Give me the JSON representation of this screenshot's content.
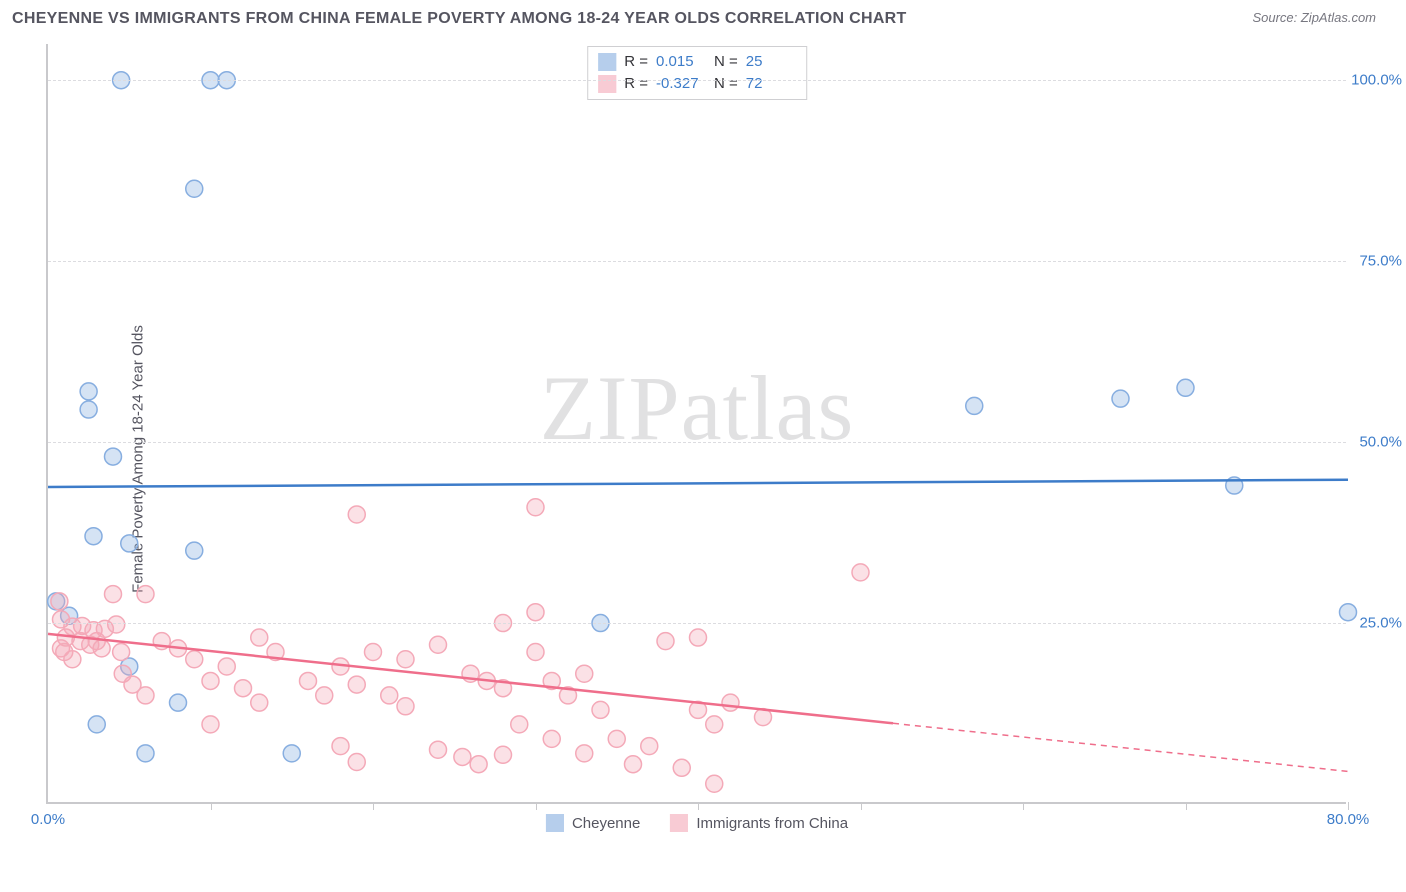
{
  "title": "CHEYENNE VS IMMIGRANTS FROM CHINA FEMALE POVERTY AMONG 18-24 YEAR OLDS CORRELATION CHART",
  "source": "Source: ZipAtlas.com",
  "watermark": "ZIPatlas",
  "y_axis_label": "Female Poverty Among 18-24 Year Olds",
  "chart": {
    "type": "scatter",
    "background_color": "#ffffff",
    "grid_color": "#dcdce0",
    "axis_color": "#c9c9cc",
    "tick_label_color": "#3d7cc9",
    "label_fontsize": 15,
    "title_fontsize": 16,
    "xlim": [
      0,
      80
    ],
    "ylim": [
      0,
      105
    ],
    "x_tick_step": 10,
    "x_tick_labels": {
      "0": "0.0%",
      "80": "80.0%"
    },
    "y_ticks": [
      25,
      50,
      75,
      100
    ],
    "y_tick_labels": {
      "25": "25.0%",
      "50": "50.0%",
      "75": "75.0%",
      "100": "100.0%"
    },
    "marker_radius": 8.5,
    "marker_stroke_width": 1.5,
    "marker_fill_opacity": 0.35,
    "line_width": 2.5,
    "series": [
      {
        "key": "cheyenne",
        "label": "Cheyenne",
        "color": "#87aee0",
        "line_color": "#3d7cc9",
        "R": "0.015",
        "N": "25",
        "regression": {
          "x1": 0,
          "y1": 43.8,
          "x2": 80,
          "y2": 44.8,
          "solid_until_x": 80
        },
        "points": [
          [
            4.5,
            100
          ],
          [
            10,
            100
          ],
          [
            11,
            100
          ],
          [
            9,
            85
          ],
          [
            2.5,
            57
          ],
          [
            2.5,
            54.5
          ],
          [
            57,
            55
          ],
          [
            66,
            56
          ],
          [
            70,
            57.5
          ],
          [
            4,
            48
          ],
          [
            73,
            44
          ],
          [
            80,
            26.5
          ],
          [
            2.8,
            37
          ],
          [
            5,
            36
          ],
          [
            9,
            35
          ],
          [
            0.5,
            28
          ],
          [
            1.3,
            26
          ],
          [
            34,
            25
          ],
          [
            5,
            19
          ],
          [
            8,
            14
          ],
          [
            3,
            11
          ],
          [
            6,
            7
          ],
          [
            15,
            7
          ]
        ]
      },
      {
        "key": "china",
        "label": "Immigrants from China",
        "color": "#f4a9b8",
        "line_color": "#ef6e8b",
        "R": "-0.327",
        "N": "72",
        "regression": {
          "x1": 0,
          "y1": 23.5,
          "x2": 80,
          "y2": 4.5,
          "solid_until_x": 52
        },
        "points": [
          [
            19,
            40
          ],
          [
            30,
            41
          ],
          [
            50,
            32
          ],
          [
            0.7,
            28
          ],
          [
            4,
            29
          ],
          [
            6,
            29
          ],
          [
            0.8,
            25.5
          ],
          [
            1.5,
            24.5
          ],
          [
            2.1,
            24.6
          ],
          [
            2.8,
            24
          ],
          [
            3.5,
            24.2
          ],
          [
            4.2,
            24.8
          ],
          [
            3,
            22.5
          ],
          [
            1.1,
            23
          ],
          [
            2,
            22.5
          ],
          [
            2.6,
            22
          ],
          [
            3.3,
            21.5
          ],
          [
            4.5,
            21
          ],
          [
            1,
            21
          ],
          [
            1.5,
            20
          ],
          [
            0.8,
            21.5
          ],
          [
            38,
            22.5
          ],
          [
            40,
            23
          ],
          [
            7,
            22.5
          ],
          [
            8,
            21.5
          ],
          [
            9,
            20
          ],
          [
            11,
            19
          ],
          [
            13,
            23
          ],
          [
            14,
            21
          ],
          [
            10,
            17
          ],
          [
            12,
            16
          ],
          [
            13,
            14
          ],
          [
            4.6,
            18
          ],
          [
            5.2,
            16.5
          ],
          [
            6,
            15
          ],
          [
            16,
            17
          ],
          [
            17,
            15
          ],
          [
            18,
            19
          ],
          [
            19,
            16.5
          ],
          [
            21,
            15
          ],
          [
            22,
            13.5
          ],
          [
            20,
            21
          ],
          [
            22,
            20
          ],
          [
            24,
            22
          ],
          [
            26,
            18
          ],
          [
            24,
            7.5
          ],
          [
            25.5,
            6.5
          ],
          [
            26.5,
            5.5
          ],
          [
            28,
            6.8
          ],
          [
            27,
            17
          ],
          [
            28,
            16
          ],
          [
            29,
            11
          ],
          [
            30,
            21
          ],
          [
            31,
            17
          ],
          [
            33,
            18
          ],
          [
            10,
            11
          ],
          [
            18,
            8
          ],
          [
            19,
            5.8
          ],
          [
            31,
            9
          ],
          [
            32,
            15
          ],
          [
            33,
            7
          ],
          [
            34,
            13
          ],
          [
            35,
            9
          ],
          [
            36,
            5.5
          ],
          [
            37,
            8
          ],
          [
            39,
            5
          ],
          [
            40,
            13
          ],
          [
            41,
            11
          ],
          [
            42,
            14
          ],
          [
            44,
            12
          ],
          [
            30,
            26.5
          ],
          [
            28,
            25
          ],
          [
            41,
            2.8
          ]
        ]
      }
    ]
  },
  "legend_top_labels": {
    "R": "R =",
    "N": "N ="
  }
}
